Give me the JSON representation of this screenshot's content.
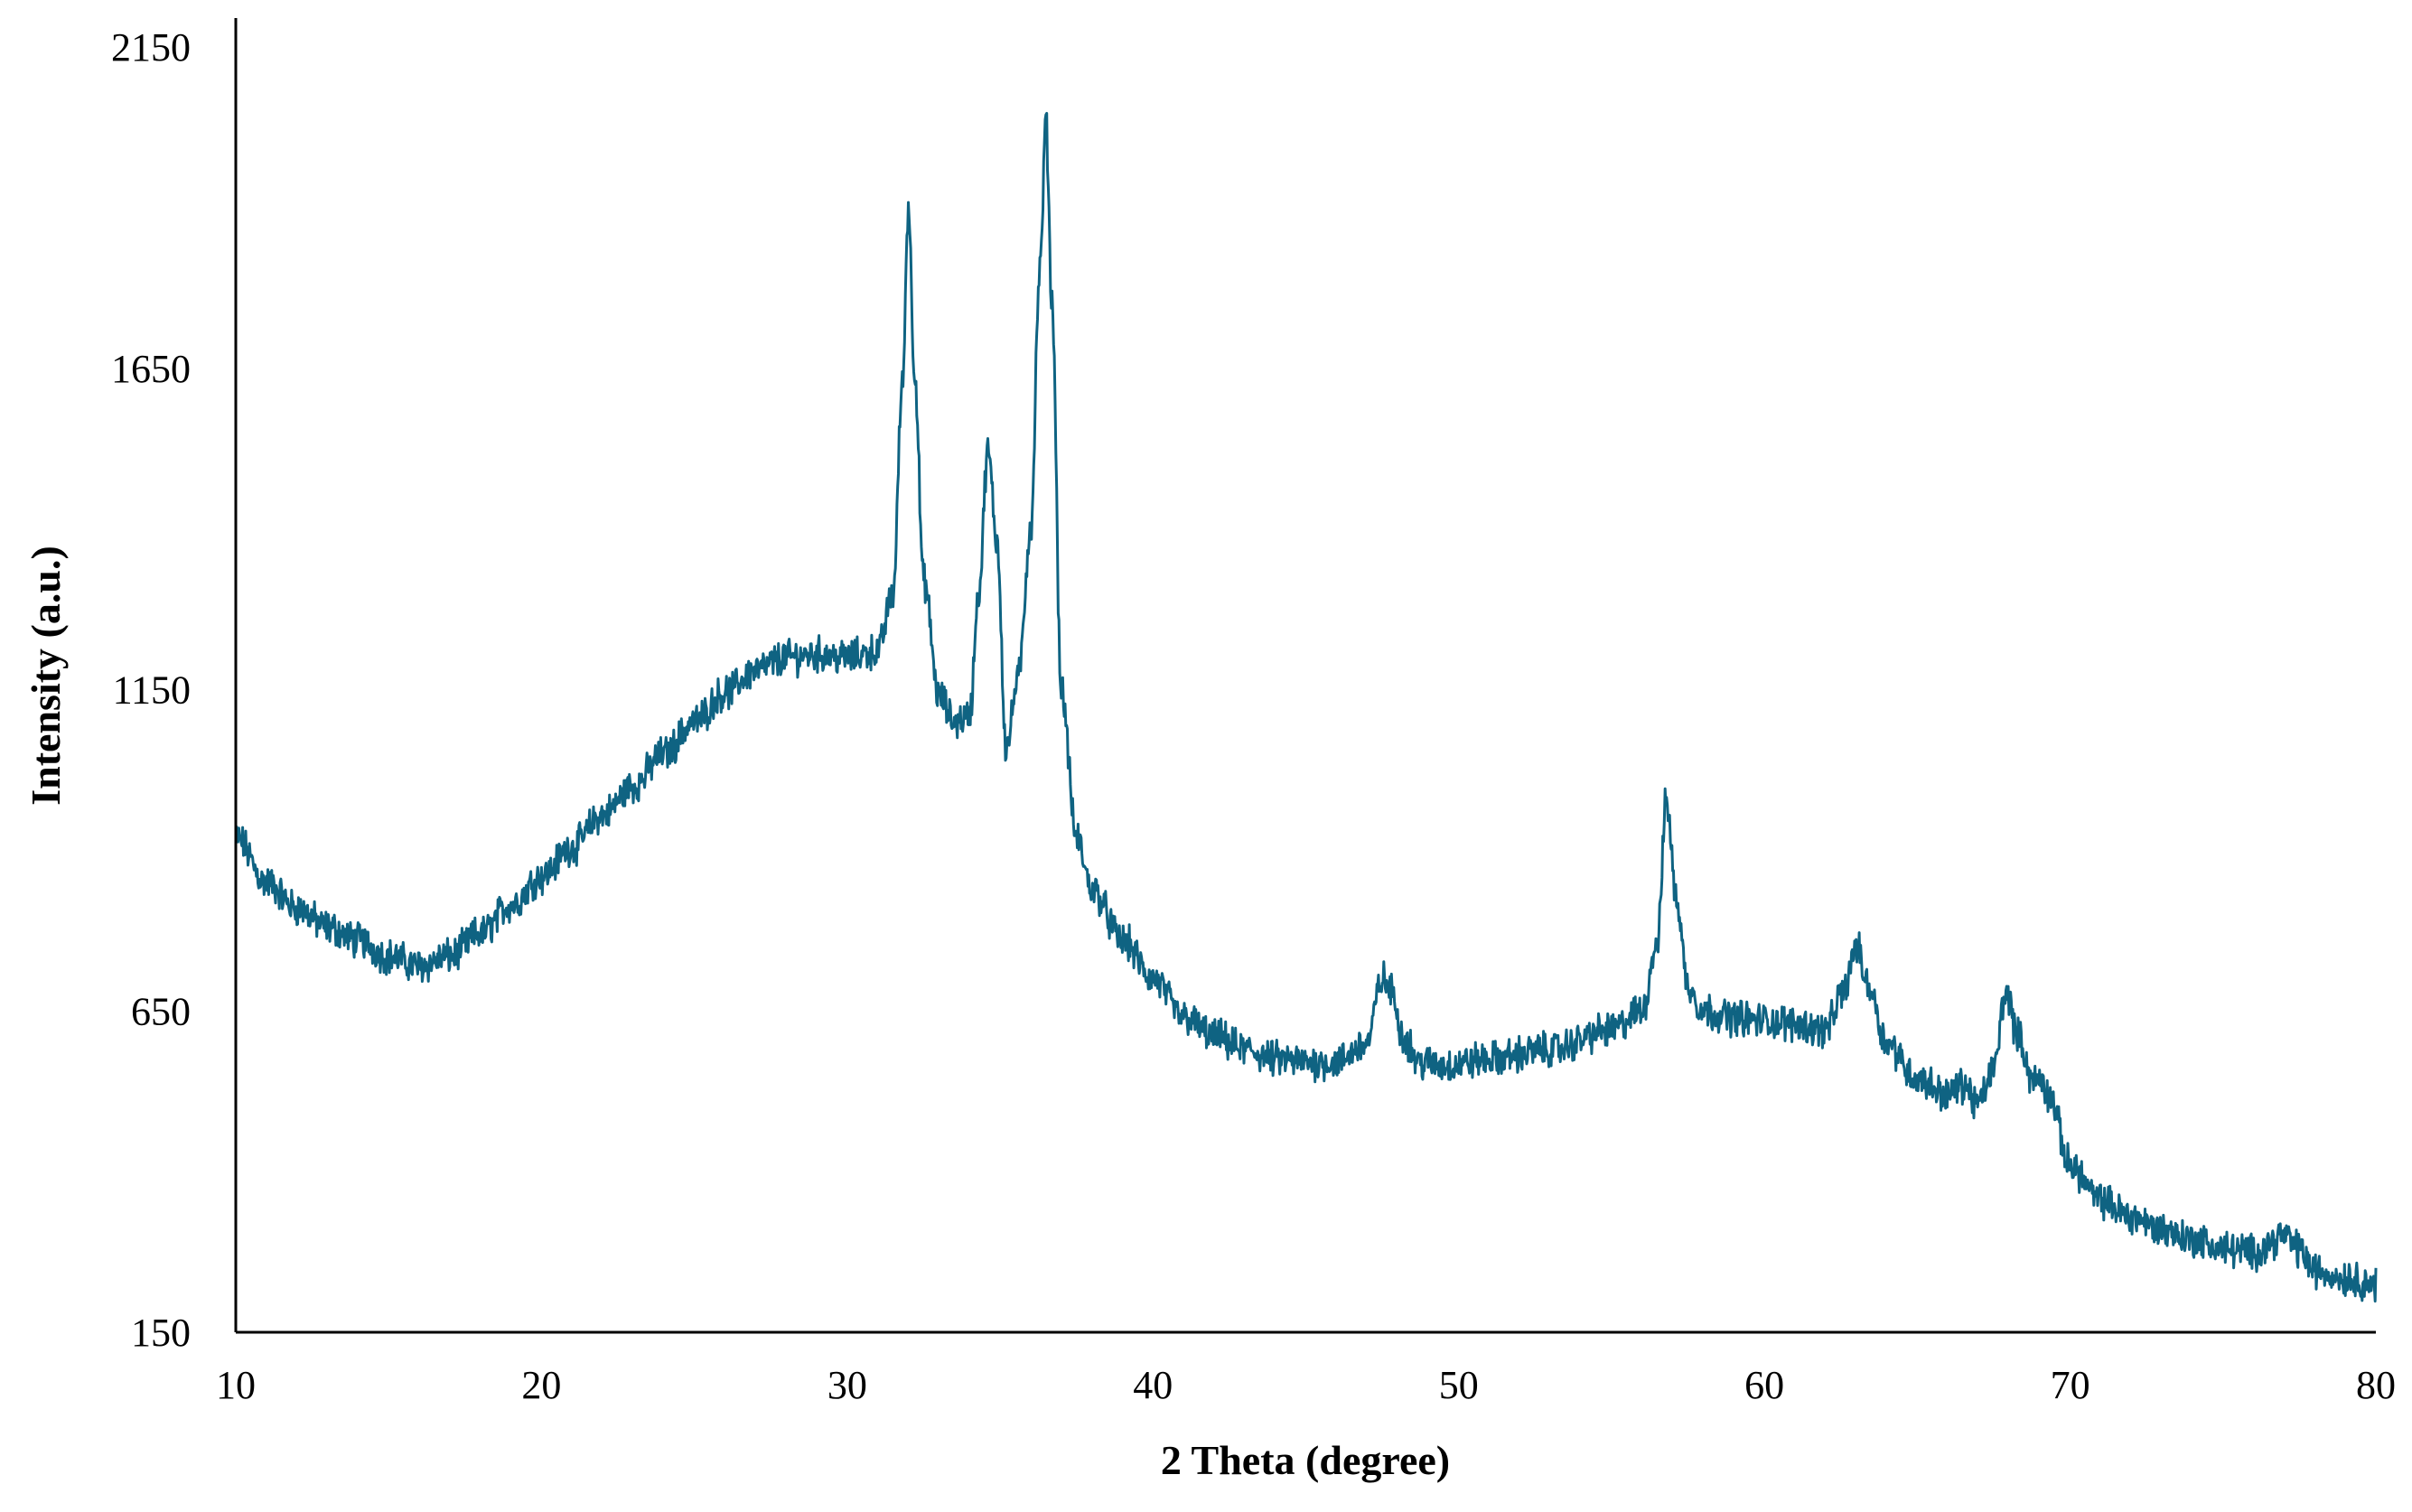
{
  "chart_data": {
    "type": "line",
    "title": "",
    "xlabel": "2 Theta (degree)",
    "ylabel": "Intensity (a.u.)",
    "xlim": [
      10,
      80
    ],
    "ylim": [
      150,
      2150
    ],
    "x_ticks": [
      10,
      20,
      30,
      40,
      50,
      60,
      70,
      80
    ],
    "y_ticks": [
      150,
      650,
      1150,
      1650,
      2150
    ],
    "grid": false,
    "legend": "none",
    "color": "#0f6382",
    "noise_amplitude": 22,
    "series": [
      {
        "x": [
          10,
          11,
          12,
          13,
          14,
          15,
          16,
          17,
          18,
          19,
          20,
          21,
          22,
          23,
          24,
          25,
          26,
          27,
          28,
          29,
          30,
          31,
          31.5,
          31.8,
          32.0,
          32.2,
          32.5,
          33,
          33.5,
          34,
          34.3,
          34.6,
          34.9,
          35.2,
          35.6,
          36,
          36.3,
          36.5,
          36.7,
          37,
          37.5,
          38,
          39,
          40,
          41,
          42,
          43,
          44,
          45,
          46,
          47,
          47.5,
          47.8,
          48.2,
          48.7,
          49.5,
          51,
          53,
          55,
          56,
          56.5,
          56.8,
          57.1,
          57.5,
          58,
          59,
          60,
          61,
          62,
          62.6,
          63.0,
          63.4,
          64,
          65,
          66,
          66.5,
          67,
          67.5,
          67.9,
          68.3,
          68.8,
          69,
          69.3,
          70,
          71,
          72,
          73,
          74,
          75,
          76,
          77,
          77.5,
          78,
          79,
          80
        ],
        "y": [
          920,
          850,
          810,
          780,
          760,
          735,
          720,
          735,
          770,
          815,
          860,
          905,
          955,
          1000,
          1050,
          1100,
          1145,
          1180,
          1200,
          1205,
          1200,
          1210,
          1300,
          1620,
          1900,
          1650,
          1320,
          1140,
          1100,
          1110,
          1300,
          1520,
          1380,
          1060,
          1170,
          1400,
          1800,
          2030,
          1750,
          1150,
          920,
          840,
          760,
          700,
          640,
          610,
          590,
          575,
          570,
          570,
          600,
          700,
          680,
          610,
          570,
          565,
          575,
          590,
          620,
          650,
          760,
          980,
          830,
          690,
          650,
          640,
          635,
          630,
          620,
          680,
          750,
          690,
          600,
          545,
          520,
          535,
          505,
          560,
          680,
          610,
          540,
          545,
          520,
          410,
          355,
          330,
          310,
          295,
          280,
          275,
          300,
          280,
          245,
          235,
          225
        ]
      }
    ]
  }
}
